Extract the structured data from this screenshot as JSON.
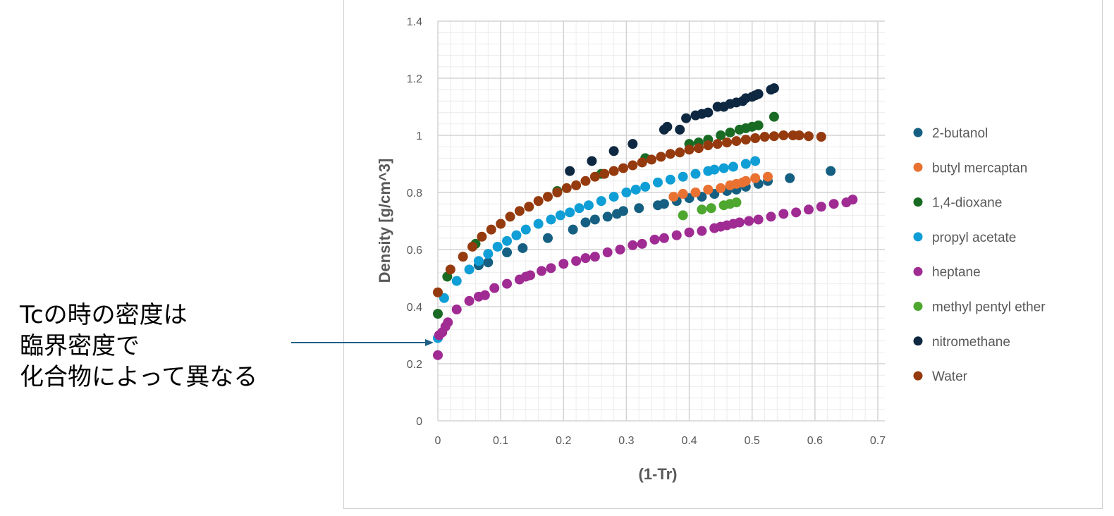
{
  "annotation": {
    "lines": [
      "Tcの時の密度は",
      "臨界密度で",
      "化合物によって異なる"
    ],
    "arrow_color": "#1f5f86"
  },
  "chart_data": {
    "type": "scatter",
    "title": "",
    "xlabel": "(1-Tr)",
    "ylabel": "Density [g/cm^3]",
    "xlim": [
      0,
      0.7
    ],
    "ylim": [
      0,
      1.4
    ],
    "xticks": [
      "0",
      "0.1",
      "0.2",
      "0.3",
      "0.4",
      "0.5",
      "0.6",
      "0.7"
    ],
    "yticks": [
      "0",
      "0.2",
      "0.4",
      "0.6",
      "0.8",
      "1",
      "1.2",
      "1.4"
    ],
    "grid": "major and minor",
    "legend_position": "right",
    "series": [
      {
        "name": "2-butanol",
        "color": "#156082",
        "points": [
          [
            0.065,
            0.545
          ],
          [
            0.08,
            0.555
          ],
          [
            0.11,
            0.59
          ],
          [
            0.135,
            0.605
          ],
          [
            0.175,
            0.64
          ],
          [
            0.215,
            0.67
          ],
          [
            0.235,
            0.695
          ],
          [
            0.25,
            0.705
          ],
          [
            0.27,
            0.715
          ],
          [
            0.285,
            0.725
          ],
          [
            0.295,
            0.735
          ],
          [
            0.32,
            0.745
          ],
          [
            0.35,
            0.755
          ],
          [
            0.36,
            0.76
          ],
          [
            0.38,
            0.77
          ],
          [
            0.4,
            0.78
          ],
          [
            0.42,
            0.785
          ],
          [
            0.44,
            0.795
          ],
          [
            0.46,
            0.805
          ],
          [
            0.475,
            0.81
          ],
          [
            0.49,
            0.82
          ],
          [
            0.51,
            0.83
          ],
          [
            0.525,
            0.84
          ],
          [
            0.56,
            0.85
          ],
          [
            0.625,
            0.875
          ]
        ]
      },
      {
        "name": "butyl mercaptan",
        "color": "#E97132",
        "points": [
          [
            0.375,
            0.785
          ],
          [
            0.39,
            0.795
          ],
          [
            0.41,
            0.8
          ],
          [
            0.43,
            0.81
          ],
          [
            0.45,
            0.815
          ],
          [
            0.465,
            0.825
          ],
          [
            0.475,
            0.83
          ],
          [
            0.485,
            0.835
          ],
          [
            0.49,
            0.84
          ],
          [
            0.505,
            0.85
          ],
          [
            0.525,
            0.855
          ]
        ]
      },
      {
        "name": "1,4-dioxane",
        "color": "#196B24",
        "points": [
          [
            0,
            0.375
          ],
          [
            0.015,
            0.505
          ],
          [
            0.06,
            0.62
          ],
          [
            0.19,
            0.805
          ],
          [
            0.26,
            0.865
          ],
          [
            0.33,
            0.92
          ],
          [
            0.4,
            0.97
          ],
          [
            0.415,
            0.975
          ],
          [
            0.43,
            0.985
          ],
          [
            0.45,
            1.0
          ],
          [
            0.465,
            1.01
          ],
          [
            0.48,
            1.02
          ],
          [
            0.49,
            1.025
          ],
          [
            0.5,
            1.03
          ],
          [
            0.51,
            1.035
          ],
          [
            0.535,
            1.065
          ]
        ]
      },
      {
        "name": "propyl acetate",
        "color": "#0F9ED5",
        "points": [
          [
            0,
            0.29
          ],
          [
            0.01,
            0.43
          ],
          [
            0.03,
            0.49
          ],
          [
            0.05,
            0.53
          ],
          [
            0.065,
            0.56
          ],
          [
            0.08,
            0.585
          ],
          [
            0.095,
            0.61
          ],
          [
            0.11,
            0.63
          ],
          [
            0.125,
            0.65
          ],
          [
            0.14,
            0.67
          ],
          [
            0.16,
            0.69
          ],
          [
            0.18,
            0.705
          ],
          [
            0.195,
            0.72
          ],
          [
            0.21,
            0.73
          ],
          [
            0.225,
            0.745
          ],
          [
            0.24,
            0.755
          ],
          [
            0.26,
            0.77
          ],
          [
            0.28,
            0.785
          ],
          [
            0.3,
            0.8
          ],
          [
            0.315,
            0.81
          ],
          [
            0.33,
            0.82
          ],
          [
            0.35,
            0.835
          ],
          [
            0.37,
            0.845
          ],
          [
            0.39,
            0.855
          ],
          [
            0.41,
            0.865
          ],
          [
            0.43,
            0.875
          ],
          [
            0.44,
            0.88
          ],
          [
            0.455,
            0.885
          ],
          [
            0.47,
            0.89
          ],
          [
            0.49,
            0.9
          ],
          [
            0.505,
            0.91
          ]
        ]
      },
      {
        "name": "heptane",
        "color": "#A02B93",
        "points": [
          [
            0,
            0.23
          ],
          [
            0.002,
            0.3
          ],
          [
            0.007,
            0.31
          ],
          [
            0.012,
            0.33
          ],
          [
            0.016,
            0.345
          ],
          [
            0.03,
            0.39
          ],
          [
            0.05,
            0.42
          ],
          [
            0.065,
            0.435
          ],
          [
            0.075,
            0.44
          ],
          [
            0.09,
            0.465
          ],
          [
            0.11,
            0.48
          ],
          [
            0.13,
            0.495
          ],
          [
            0.14,
            0.505
          ],
          [
            0.147,
            0.51
          ],
          [
            0.165,
            0.525
          ],
          [
            0.18,
            0.535
          ],
          [
            0.2,
            0.55
          ],
          [
            0.22,
            0.56
          ],
          [
            0.235,
            0.57
          ],
          [
            0.25,
            0.575
          ],
          [
            0.27,
            0.59
          ],
          [
            0.29,
            0.6
          ],
          [
            0.31,
            0.615
          ],
          [
            0.325,
            0.62
          ],
          [
            0.345,
            0.635
          ],
          [
            0.36,
            0.64
          ],
          [
            0.38,
            0.65
          ],
          [
            0.4,
            0.66
          ],
          [
            0.42,
            0.665
          ],
          [
            0.44,
            0.675
          ],
          [
            0.45,
            0.68
          ],
          [
            0.46,
            0.685
          ],
          [
            0.47,
            0.69
          ],
          [
            0.48,
            0.695
          ],
          [
            0.495,
            0.7
          ],
          [
            0.51,
            0.705
          ],
          [
            0.53,
            0.715
          ],
          [
            0.55,
            0.725
          ],
          [
            0.57,
            0.73
          ],
          [
            0.59,
            0.74
          ],
          [
            0.61,
            0.75
          ],
          [
            0.63,
            0.76
          ],
          [
            0.65,
            0.765
          ],
          [
            0.66,
            0.775
          ]
        ]
      },
      {
        "name": "methyl pentyl ether",
        "color": "#4EA72E",
        "points": [
          [
            0.39,
            0.72
          ],
          [
            0.42,
            0.74
          ],
          [
            0.435,
            0.745
          ],
          [
            0.455,
            0.755
          ],
          [
            0.465,
            0.76
          ],
          [
            0.475,
            0.765
          ]
        ]
      },
      {
        "name": "nitromethane",
        "color": "#0E2841",
        "points": [
          [
            0.21,
            0.875
          ],
          [
            0.245,
            0.91
          ],
          [
            0.28,
            0.945
          ],
          [
            0.31,
            0.97
          ],
          [
            0.36,
            1.02
          ],
          [
            0.365,
            1.03
          ],
          [
            0.385,
            1.02
          ],
          [
            0.395,
            1.06
          ],
          [
            0.41,
            1.07
          ],
          [
            0.42,
            1.075
          ],
          [
            0.43,
            1.08
          ],
          [
            0.445,
            1.1
          ],
          [
            0.455,
            1.1
          ],
          [
            0.465,
            1.11
          ],
          [
            0.475,
            1.115
          ],
          [
            0.485,
            1.12
          ],
          [
            0.49,
            1.13
          ],
          [
            0.5,
            1.135
          ],
          [
            0.505,
            1.14
          ],
          [
            0.51,
            1.145
          ],
          [
            0.53,
            1.16
          ],
          [
            0.535,
            1.165
          ]
        ]
      },
      {
        "name": "Water",
        "color": "#953A0E",
        "points": [
          [
            0,
            0.45
          ],
          [
            0.02,
            0.53
          ],
          [
            0.04,
            0.575
          ],
          [
            0.055,
            0.61
          ],
          [
            0.07,
            0.645
          ],
          [
            0.085,
            0.67
          ],
          [
            0.1,
            0.69
          ],
          [
            0.115,
            0.715
          ],
          [
            0.13,
            0.735
          ],
          [
            0.145,
            0.75
          ],
          [
            0.16,
            0.77
          ],
          [
            0.175,
            0.785
          ],
          [
            0.19,
            0.8
          ],
          [
            0.205,
            0.815
          ],
          [
            0.22,
            0.825
          ],
          [
            0.235,
            0.84
          ],
          [
            0.25,
            0.855
          ],
          [
            0.265,
            0.865
          ],
          [
            0.28,
            0.875
          ],
          [
            0.295,
            0.885
          ],
          [
            0.31,
            0.895
          ],
          [
            0.325,
            0.905
          ],
          [
            0.34,
            0.915
          ],
          [
            0.355,
            0.925
          ],
          [
            0.37,
            0.935
          ],
          [
            0.385,
            0.94
          ],
          [
            0.4,
            0.95
          ],
          [
            0.415,
            0.955
          ],
          [
            0.43,
            0.965
          ],
          [
            0.445,
            0.97
          ],
          [
            0.46,
            0.975
          ],
          [
            0.475,
            0.98
          ],
          [
            0.49,
            0.985
          ],
          [
            0.505,
            0.99
          ],
          [
            0.52,
            0.995
          ],
          [
            0.535,
            0.997
          ],
          [
            0.55,
            1.0
          ],
          [
            0.565,
            1.0
          ],
          [
            0.575,
            1.0
          ],
          [
            0.59,
            0.997
          ],
          [
            0.61,
            0.995
          ]
        ]
      }
    ]
  }
}
